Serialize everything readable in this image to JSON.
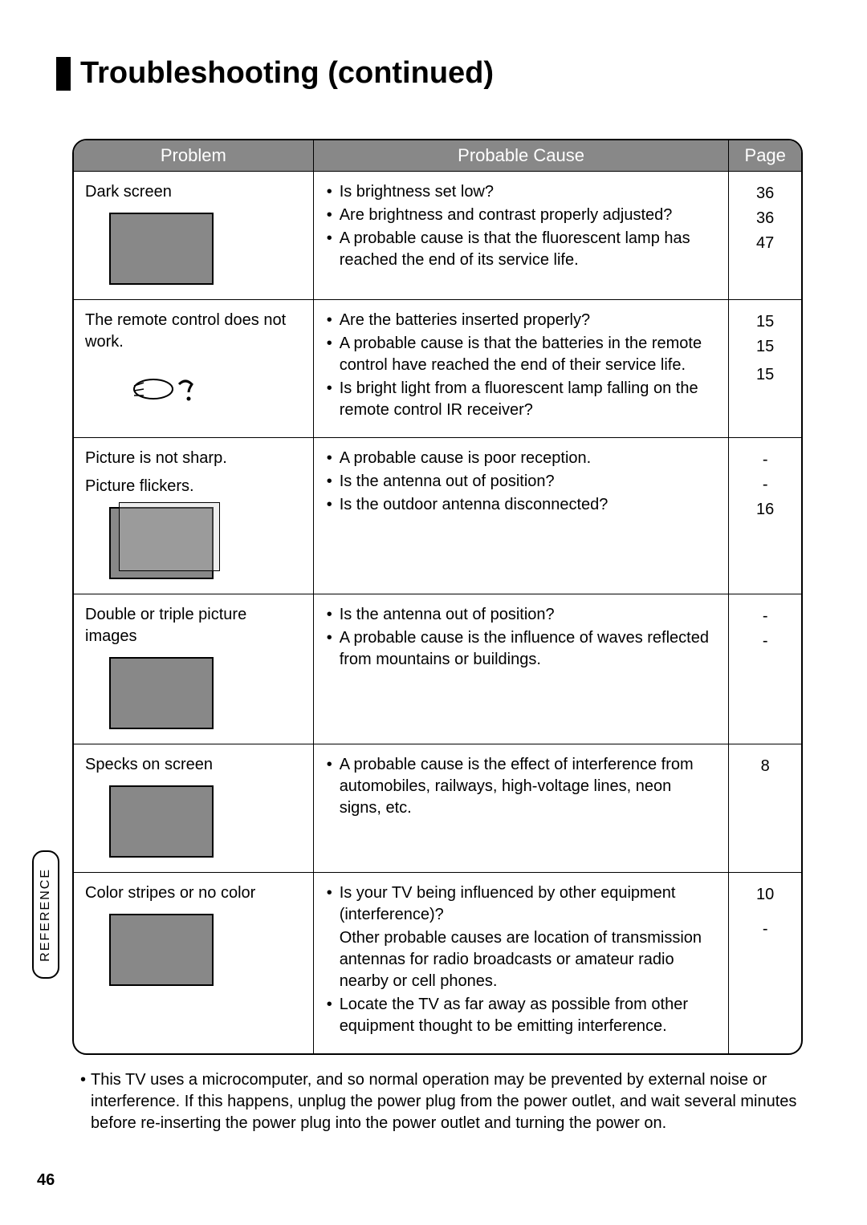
{
  "title": "Troubleshooting (continued)",
  "headers": {
    "problem": "Problem",
    "cause": "Probable Cause",
    "page": "Page"
  },
  "rows": [
    {
      "problem": "Dark screen",
      "thumbClass": "thumb",
      "causes": [
        "Is brightness set low?",
        "Are brightness and contrast properly adjusted?",
        "A probable cause is that the fluorescent lamp has reached the end of its service life."
      ],
      "pages": [
        "36",
        "36",
        "47"
      ]
    },
    {
      "problem": "The remote control does not work.",
      "thumbClass": "thumb remote",
      "remoteGlyph": "?",
      "causes": [
        "Are the batteries inserted properly?",
        "A probable cause is that the batteries in the remote control have reached the end of their service life.",
        "Is bright light from a fluorescent lamp falling on the remote control IR receiver?"
      ],
      "pages": [
        "15",
        "15",
        "",
        "15"
      ]
    },
    {
      "problem": "Picture is not sharp.\nPicture flickers.",
      "thumbClass": "thumb double",
      "causes": [
        "A probable cause is poor reception.",
        "Is the antenna out of position?",
        "Is the outdoor antenna disconnected?"
      ],
      "pages": [
        "-",
        "-",
        "16"
      ]
    },
    {
      "problem": "Double or triple picture images",
      "thumbClass": "thumb",
      "causes": [
        "Is the antenna out of position?",
        "A probable cause is the influence of waves reflected from mountains or buildings."
      ],
      "pages": [
        "-",
        "-"
      ]
    },
    {
      "problem": "Specks on screen",
      "thumbClass": "thumb",
      "causes": [
        "A probable cause is the effect of interference from automobiles, railways, high-voltage lines, neon signs, etc."
      ],
      "pages": [
        "8"
      ]
    },
    {
      "problem": "Color stripes or no color",
      "thumbClass": "thumb",
      "causes": [
        "Is your TV being influenced by other equipment (interference)?",
        "Other probable causes are location of transmission antennas for radio broadcasts or amateur radio nearby or cell phones.|noBullet",
        "Locate the TV as far away as possible from other equipment thought to be emitting interference."
      ],
      "pages": [
        "10",
        "",
        "",
        "",
        "-"
      ]
    }
  ],
  "footnote": "This TV uses a microcomputer, and so normal operation may be prevented by external noise or interference. If this happens, unplug the power plug from the power outlet, and wait several minutes before re-inserting the power plug into the power outlet and turning the power on.",
  "sideTab": "REFERENCE",
  "pageNumber": "46",
  "colors": {
    "headerBg": "#888888",
    "headerText": "#ffffff",
    "border": "#000000"
  }
}
